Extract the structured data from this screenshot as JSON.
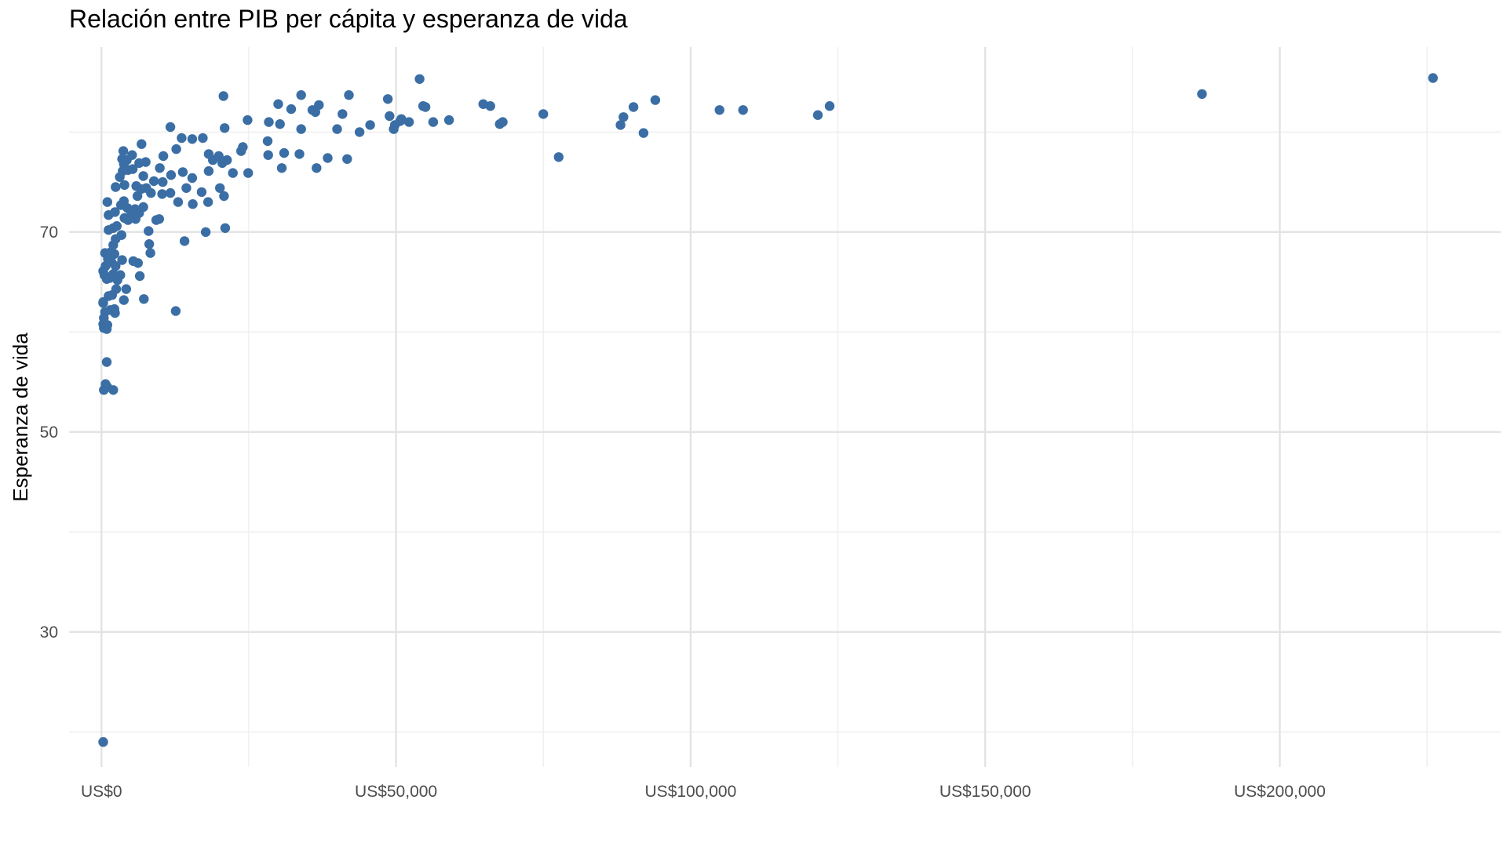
{
  "chart_data": {
    "type": "scatter",
    "title": "Relación entre PIB per cápita y esperanza de vida",
    "xlabel": "",
    "ylabel": "Esperanza de vida",
    "xlim": [
      -5500,
      237500
    ],
    "ylim": [
      16.5,
      88.5
    ],
    "x_ticks": [
      0,
      50000,
      100000,
      150000,
      200000
    ],
    "x_tick_labels": [
      "US$0",
      "US$50,000",
      "US$100,000",
      "US$150,000",
      "US$200,000"
    ],
    "y_ticks": [
      30,
      50,
      70
    ],
    "y_tick_labels": [
      "30",
      "50",
      "70"
    ],
    "grid": true,
    "legend": "none",
    "point_color": "#3a6ea5",
    "points": [
      [
        300,
        19
      ],
      [
        400,
        54.2
      ],
      [
        700,
        54.8
      ],
      [
        1000,
        54.5
      ],
      [
        2000,
        54.2
      ],
      [
        900,
        57
      ],
      [
        400,
        60.4
      ],
      [
        900,
        60.3
      ],
      [
        300,
        60.8
      ],
      [
        400,
        61.4
      ],
      [
        1000,
        60.7
      ],
      [
        600,
        62
      ],
      [
        1500,
        62.2
      ],
      [
        2200,
        62.3
      ],
      [
        300,
        62.9
      ],
      [
        300,
        63
      ],
      [
        1200,
        63.6
      ],
      [
        1800,
        63.7
      ],
      [
        2500,
        64.3
      ],
      [
        3800,
        63.2
      ],
      [
        4200,
        64.3
      ],
      [
        7200,
        63.3
      ],
      [
        12600,
        62.1
      ],
      [
        2300,
        61.9
      ],
      [
        500,
        65.7
      ],
      [
        300,
        66.1
      ],
      [
        900,
        65.3
      ],
      [
        1400,
        65.4
      ],
      [
        2000,
        65.8
      ],
      [
        2700,
        65.2
      ],
      [
        3200,
        65.7
      ],
      [
        6500,
        65.6
      ],
      [
        700,
        66.6
      ],
      [
        1100,
        67.3
      ],
      [
        1700,
        67
      ],
      [
        2400,
        66.6
      ],
      [
        3500,
        67.2
      ],
      [
        5400,
        67.1
      ],
      [
        6200,
        66.9
      ],
      [
        600,
        67.9
      ],
      [
        1100,
        67.6
      ],
      [
        1600,
        68
      ],
      [
        2200,
        67.8
      ],
      [
        2000,
        68.7
      ],
      [
        2400,
        69.3
      ],
      [
        3400,
        69.7
      ],
      [
        8100,
        68.8
      ],
      [
        8300,
        67.9
      ],
      [
        8000,
        70.1
      ],
      [
        1200,
        70.2
      ],
      [
        2000,
        70.4
      ],
      [
        2600,
        70.6
      ],
      [
        14100,
        69.1
      ],
      [
        17700,
        70
      ],
      [
        21000,
        70.4
      ],
      [
        1200,
        71.7
      ],
      [
        2300,
        72
      ],
      [
        3300,
        72.7
      ],
      [
        4400,
        72.4
      ],
      [
        5000,
        72.1
      ],
      [
        5700,
        72.3
      ],
      [
        6400,
        71.9
      ],
      [
        7100,
        72.5
      ],
      [
        3900,
        71.4
      ],
      [
        4500,
        71.2
      ],
      [
        5200,
        71.7
      ],
      [
        5800,
        71.3
      ],
      [
        9300,
        71.2
      ],
      [
        9800,
        71.3
      ],
      [
        1000,
        73
      ],
      [
        3800,
        73.1
      ],
      [
        6100,
        73.6
      ],
      [
        8400,
        73.9
      ],
      [
        10300,
        73.8
      ],
      [
        11700,
        73.9
      ],
      [
        13000,
        73
      ],
      [
        15500,
        72.8
      ],
      [
        17000,
        74
      ],
      [
        18100,
        73
      ],
      [
        20800,
        73.6
      ],
      [
        2400,
        74.5
      ],
      [
        3900,
        74.7
      ],
      [
        5900,
        74.6
      ],
      [
        6700,
        74.3
      ],
      [
        7600,
        74.4
      ],
      [
        8900,
        75.1
      ],
      [
        10400,
        75
      ],
      [
        11800,
        75.7
      ],
      [
        14400,
        74.4
      ],
      [
        15400,
        75.4
      ],
      [
        20100,
        74.4
      ],
      [
        3100,
        75.5
      ],
      [
        3600,
        76.1
      ],
      [
        4500,
        76.2
      ],
      [
        5300,
        76.3
      ],
      [
        7100,
        75.6
      ],
      [
        9900,
        76.4
      ],
      [
        13800,
        76
      ],
      [
        18200,
        76.1
      ],
      [
        22300,
        75.9
      ],
      [
        24900,
        75.9
      ],
      [
        3800,
        76.8
      ],
      [
        6400,
        76.9
      ],
      [
        7500,
        77
      ],
      [
        20500,
        76.9
      ],
      [
        3500,
        77.3
      ],
      [
        4300,
        77.2
      ],
      [
        18900,
        77.2
      ],
      [
        19900,
        77.6
      ],
      [
        21300,
        77.2
      ],
      [
        30600,
        76.4
      ],
      [
        36500,
        76.4
      ],
      [
        41700,
        77.3
      ],
      [
        3700,
        78.1
      ],
      [
        5200,
        77.7
      ],
      [
        10500,
        77.6
      ],
      [
        12700,
        78.3
      ],
      [
        18200,
        77.8
      ],
      [
        23700,
        78.1
      ],
      [
        28300,
        77.7
      ],
      [
        31000,
        77.9
      ],
      [
        33600,
        77.8
      ],
      [
        38400,
        77.4
      ],
      [
        77600,
        77.5
      ],
      [
        6800,
        78.8
      ],
      [
        13600,
        79.4
      ],
      [
        15400,
        79.3
      ],
      [
        17200,
        79.4
      ],
      [
        24000,
        78.5
      ],
      [
        28200,
        79.1
      ],
      [
        11700,
        80.5
      ],
      [
        20900,
        80.4
      ],
      [
        33900,
        80.3
      ],
      [
        40000,
        80.3
      ],
      [
        43800,
        80
      ],
      [
        49600,
        80.3
      ],
      [
        92000,
        79.9
      ],
      [
        24800,
        81.2
      ],
      [
        28400,
        81
      ],
      [
        30300,
        80.8
      ],
      [
        45600,
        80.7
      ],
      [
        49800,
        80.7
      ],
      [
        50700,
        81.1
      ],
      [
        52200,
        81
      ],
      [
        56300,
        81
      ],
      [
        59000,
        81.2
      ],
      [
        67600,
        80.8
      ],
      [
        68100,
        81
      ],
      [
        88100,
        80.7
      ],
      [
        40900,
        81.8
      ],
      [
        48900,
        81.6
      ],
      [
        50900,
        81.3
      ],
      [
        75000,
        81.8
      ],
      [
        88600,
        81.5
      ],
      [
        35800,
        82.2
      ],
      [
        36300,
        82
      ],
      [
        32200,
        82.3
      ],
      [
        55000,
        82.5
      ],
      [
        104900,
        82.2
      ],
      [
        108900,
        82.2
      ],
      [
        121600,
        81.7
      ],
      [
        123600,
        82.6
      ],
      [
        30000,
        82.8
      ],
      [
        36900,
        82.7
      ],
      [
        54600,
        82.6
      ],
      [
        64800,
        82.8
      ],
      [
        66000,
        82.6
      ],
      [
        90300,
        82.5
      ],
      [
        94000,
        83.2
      ],
      [
        20700,
        83.6
      ],
      [
        33900,
        83.7
      ],
      [
        42000,
        83.7
      ],
      [
        48600,
        83.3
      ],
      [
        186800,
        83.8
      ],
      [
        54000,
        85.3
      ],
      [
        226000,
        85.4
      ]
    ]
  }
}
